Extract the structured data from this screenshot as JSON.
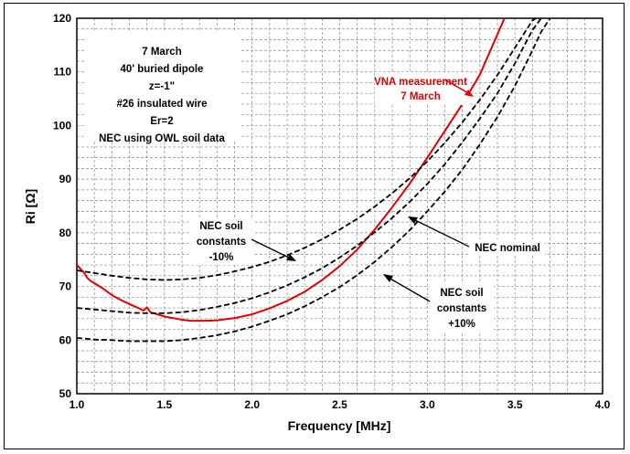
{
  "chart_data": {
    "type": "line",
    "xlabel": "Frequency [MHz]",
    "ylabel": "Ri [Ω]",
    "xlim": [
      1.0,
      4.0
    ],
    "ylim": [
      50,
      120
    ],
    "x_ticks": [
      "1.0",
      "1.5",
      "2.0",
      "2.5",
      "3.0",
      "3.5",
      "4.0"
    ],
    "y_ticks": [
      "50",
      "60",
      "70",
      "80",
      "90",
      "100",
      "110",
      "120"
    ],
    "grid": "on (dashed, minor x every 0.1 MHz, minor y every 2 Ω)",
    "legend": "none (inline annotations)",
    "info_box": [
      "7 March",
      "40' buried dipole",
      "z=-1\"",
      "#26 insulated wire",
      "Er=2",
      "NEC using OWL soil data"
    ],
    "annotations": {
      "vna": [
        "VNA measurement",
        "7 March"
      ],
      "nec_minus": [
        "NEC soil",
        "constants",
        "-10%"
      ],
      "nec_nominal": [
        "NEC nominal"
      ],
      "nec_plus": [
        "NEC soil",
        "constants",
        "+10%"
      ]
    },
    "series": [
      {
        "key": "vna",
        "color": "#e00000",
        "style": "solid",
        "points": [
          [
            1.0,
            74.0
          ],
          [
            1.02,
            73.3
          ],
          [
            1.04,
            72.6
          ],
          [
            1.06,
            71.6
          ],
          [
            1.08,
            71.0
          ],
          [
            1.1,
            70.6
          ],
          [
            1.15,
            69.6
          ],
          [
            1.2,
            68.4
          ],
          [
            1.25,
            67.5
          ],
          [
            1.3,
            66.7
          ],
          [
            1.35,
            66.0
          ],
          [
            1.38,
            65.5
          ],
          [
            1.4,
            66.1
          ],
          [
            1.42,
            65.2
          ],
          [
            1.45,
            64.9
          ],
          [
            1.5,
            64.4
          ],
          [
            1.55,
            64.1
          ],
          [
            1.6,
            63.8
          ],
          [
            1.65,
            63.6
          ],
          [
            1.7,
            63.6
          ],
          [
            1.75,
            63.6
          ],
          [
            1.8,
            63.7
          ],
          [
            1.9,
            64.1
          ],
          [
            2.0,
            64.8
          ],
          [
            2.1,
            65.9
          ],
          [
            2.2,
            67.3
          ],
          [
            2.3,
            69.0
          ],
          [
            2.4,
            71.2
          ],
          [
            2.5,
            73.8
          ],
          [
            2.6,
            76.9
          ],
          [
            2.7,
            80.6
          ],
          [
            2.8,
            84.8
          ],
          [
            2.9,
            89.2
          ],
          [
            3.0,
            94.0
          ],
          [
            3.1,
            99.0
          ],
          [
            3.2,
            104.0
          ],
          [
            3.3,
            109.5
          ],
          [
            3.4,
            117.0
          ],
          [
            3.44,
            120.0
          ]
        ]
      },
      {
        "key": "nec_minus",
        "color": "#000000",
        "style": "dashed",
        "points": [
          [
            1.0,
            73.0
          ],
          [
            1.1,
            72.5
          ],
          [
            1.2,
            72.0
          ],
          [
            1.3,
            71.6
          ],
          [
            1.4,
            71.3
          ],
          [
            1.5,
            71.2
          ],
          [
            1.6,
            71.3
          ],
          [
            1.7,
            71.6
          ],
          [
            1.8,
            72.1
          ],
          [
            1.9,
            72.8
          ],
          [
            2.0,
            73.6
          ],
          [
            2.1,
            74.6
          ],
          [
            2.2,
            75.8
          ],
          [
            2.3,
            77.2
          ],
          [
            2.4,
            78.8
          ],
          [
            2.5,
            80.6
          ],
          [
            2.6,
            82.6
          ],
          [
            2.7,
            84.9
          ],
          [
            2.8,
            87.4
          ],
          [
            2.9,
            90.2
          ],
          [
            3.0,
            93.3
          ],
          [
            3.1,
            96.8
          ],
          [
            3.2,
            100.6
          ],
          [
            3.3,
            104.8
          ],
          [
            3.4,
            109.4
          ],
          [
            3.5,
            114.5
          ],
          [
            3.6,
            119.6
          ],
          [
            3.62,
            120.0
          ]
        ]
      },
      {
        "key": "nec_nominal",
        "color": "#000000",
        "style": "dashed",
        "points": [
          [
            1.0,
            66.0
          ],
          [
            1.1,
            65.7
          ],
          [
            1.2,
            65.4
          ],
          [
            1.3,
            65.1
          ],
          [
            1.4,
            65.0
          ],
          [
            1.5,
            65.0
          ],
          [
            1.6,
            65.2
          ],
          [
            1.7,
            65.6
          ],
          [
            1.8,
            66.2
          ],
          [
            1.9,
            66.9
          ],
          [
            2.0,
            67.8
          ],
          [
            2.1,
            68.9
          ],
          [
            2.2,
            70.2
          ],
          [
            2.3,
            71.7
          ],
          [
            2.4,
            73.4
          ],
          [
            2.5,
            75.4
          ],
          [
            2.6,
            77.6
          ],
          [
            2.7,
            80.1
          ],
          [
            2.8,
            82.8
          ],
          [
            2.9,
            85.8
          ],
          [
            3.0,
            89.1
          ],
          [
            3.1,
            92.8
          ],
          [
            3.2,
            96.9
          ],
          [
            3.3,
            101.3
          ],
          [
            3.4,
            106.0
          ],
          [
            3.5,
            111.6
          ],
          [
            3.6,
            117.8
          ],
          [
            3.65,
            120.0
          ]
        ]
      },
      {
        "key": "nec_plus",
        "color": "#000000",
        "style": "dashed",
        "points": [
          [
            1.0,
            60.4
          ],
          [
            1.1,
            60.1
          ],
          [
            1.2,
            60.0
          ],
          [
            1.3,
            59.8
          ],
          [
            1.4,
            59.8
          ],
          [
            1.5,
            59.8
          ],
          [
            1.6,
            60.0
          ],
          [
            1.7,
            60.4
          ],
          [
            1.8,
            60.9
          ],
          [
            1.9,
            61.6
          ],
          [
            2.0,
            62.5
          ],
          [
            2.1,
            63.6
          ],
          [
            2.2,
            64.8
          ],
          [
            2.3,
            66.3
          ],
          [
            2.4,
            68.0
          ],
          [
            2.5,
            69.9
          ],
          [
            2.6,
            72.1
          ],
          [
            2.7,
            74.6
          ],
          [
            2.8,
            77.4
          ],
          [
            2.9,
            80.5
          ],
          [
            3.0,
            84.0
          ],
          [
            3.1,
            87.7
          ],
          [
            3.2,
            91.8
          ],
          [
            3.3,
            96.5
          ],
          [
            3.4,
            101.6
          ],
          [
            3.5,
            107.4
          ],
          [
            3.6,
            114.0
          ],
          [
            3.65,
            117.5
          ],
          [
            3.7,
            120.0
          ]
        ]
      }
    ]
  }
}
